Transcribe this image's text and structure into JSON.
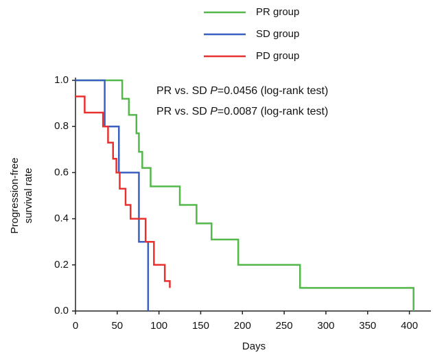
{
  "chart_data": {
    "type": "step",
    "x_label": "Days",
    "y_label": [
      "Progression-free",
      "survival rate"
    ],
    "annotations": [
      {
        "parts": [
          "PR vs. SD ",
          "P",
          "=0.0456 (log-rank test)"
        ]
      },
      {
        "parts": [
          "PR vs. SD ",
          "P",
          "=0.0087 (log-rank test)"
        ]
      }
    ],
    "xlim": [
      0,
      425
    ],
    "ylim": [
      0,
      1
    ],
    "xticks": [
      0,
      50,
      100,
      150,
      200,
      250,
      300,
      350,
      400
    ],
    "yticks": [
      {
        "value": 0,
        "label": "0.0"
      },
      0.2,
      0.4,
      0.6,
      0.8,
      {
        "value": 1,
        "label": "1.0"
      }
    ],
    "series": [
      {
        "name": "PR group",
        "color": "#52b84a",
        "x": [
          0,
          56,
          56,
          64,
          64,
          73,
          73,
          76,
          76,
          80,
          80,
          90,
          90,
          125,
          125,
          145,
          145,
          163,
          163,
          195,
          195,
          269,
          269,
          405,
          405
        ],
        "values": [
          1,
          1,
          0.92,
          0.92,
          0.85,
          0.85,
          0.77,
          0.77,
          0.69,
          0.69,
          0.62,
          0.62,
          0.54,
          0.54,
          0.46,
          0.46,
          0.38,
          0.38,
          0.31,
          0.31,
          0.2,
          0.2,
          0.1,
          0.1,
          0
        ]
      },
      {
        "name": "SD group",
        "color": "#3a5fc0",
        "x": [
          0,
          35,
          35,
          52,
          52,
          76,
          76,
          87,
          87
        ],
        "values": [
          1,
          1,
          0.8,
          0.8,
          0.6,
          0.6,
          0.3,
          0.3,
          0
        ]
      },
      {
        "name": "PD group",
        "color": "#e8312f",
        "x": [
          0,
          11,
          11,
          33,
          33,
          39,
          39,
          45,
          45,
          49,
          49,
          53,
          53,
          60,
          60,
          66,
          66,
          84,
          84,
          94,
          94,
          107,
          107,
          113,
          113
        ],
        "values": [
          0.93,
          0.93,
          0.86,
          0.86,
          0.8,
          0.8,
          0.73,
          0.73,
          0.66,
          0.66,
          0.6,
          0.6,
          0.53,
          0.53,
          0.46,
          0.46,
          0.4,
          0.4,
          0.3,
          0.3,
          0.2,
          0.2,
          0.13,
          0.13,
          0.1
        ]
      }
    ]
  }
}
